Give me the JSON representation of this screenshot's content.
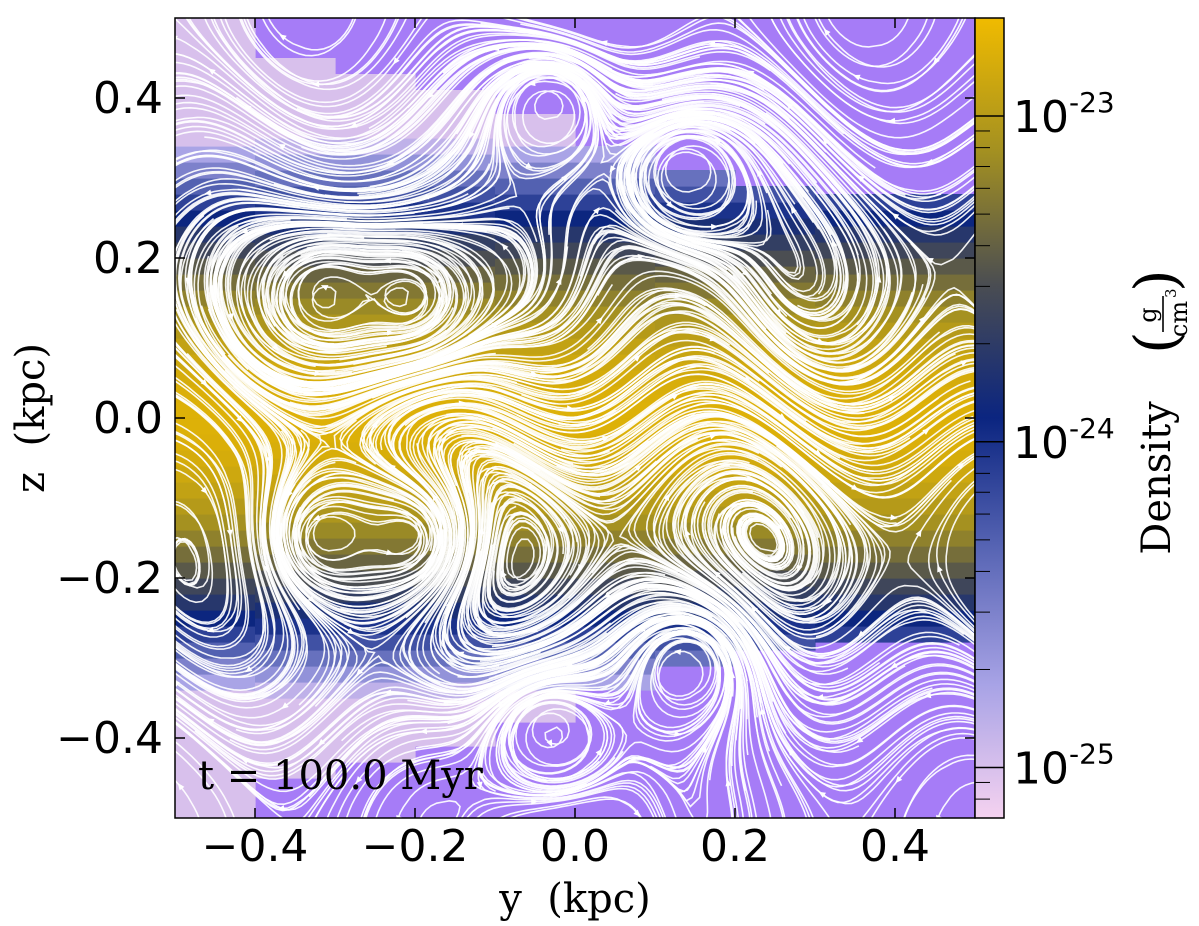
{
  "chart_data": {
    "type": "heatmap",
    "title": "",
    "xlabel": "y  (kpc)",
    "ylabel": "z  (kpc)",
    "xlim": [
      -0.5,
      0.5
    ],
    "ylim": [
      -0.5,
      0.5
    ],
    "xticks": [
      -0.4,
      -0.2,
      0.0,
      0.2,
      0.4
    ],
    "xtick_labels": [
      "−0.4",
      "−0.2",
      "0.0",
      "0.2",
      "0.4"
    ],
    "yticks": [
      0.4,
      0.2,
      0.0,
      -0.2,
      -0.4
    ],
    "ytick_labels": [
      "0.4",
      "0.2",
      "0.0",
      "−0.2",
      "−0.4"
    ],
    "annotation": "t = 100.0 Myr",
    "colorbar": {
      "label": "Density",
      "unit_numerator": "g",
      "unit_denominator": "cm",
      "unit_exponent": "3",
      "scale": "log",
      "range": [
        7e-26,
        2e-23
      ],
      "ticks": [
        1e-25,
        1e-24,
        1e-23
      ],
      "tick_base": "10",
      "tick_exponents": [
        "-25",
        "-24",
        "-23"
      ],
      "colors": [
        "#f5d2f0",
        "#a8a3e6",
        "#5966b5",
        "#0b2580",
        "#4a4d52",
        "#a39021",
        "#f0bb00"
      ]
    },
    "colors": {
      "background": "#a67cf7",
      "stream": "#ffffff"
    },
    "disk": {
      "midplane_density": 1.6e-23,
      "scale_height_kpc": 0.11,
      "edge_kpc": [
        0.5,
        0.45,
        0.43,
        0.41,
        0.38,
        0.34,
        0.31,
        0.29,
        0.28,
        0.28
      ],
      "halo_density": 1e-25
    },
    "vortices": [
      {
        "y": -0.31,
        "z": 0.15
      },
      {
        "y": -0.21,
        "z": 0.15
      },
      {
        "y": -0.31,
        "z": -0.15
      },
      {
        "y": -0.21,
        "z": -0.15
      },
      {
        "y": 0.14,
        "z": 0.31
      },
      {
        "y": 0.14,
        "z": -0.31
      },
      {
        "y": -0.03,
        "z": 0.39
      },
      {
        "y": -0.03,
        "z": -0.39
      }
    ]
  }
}
